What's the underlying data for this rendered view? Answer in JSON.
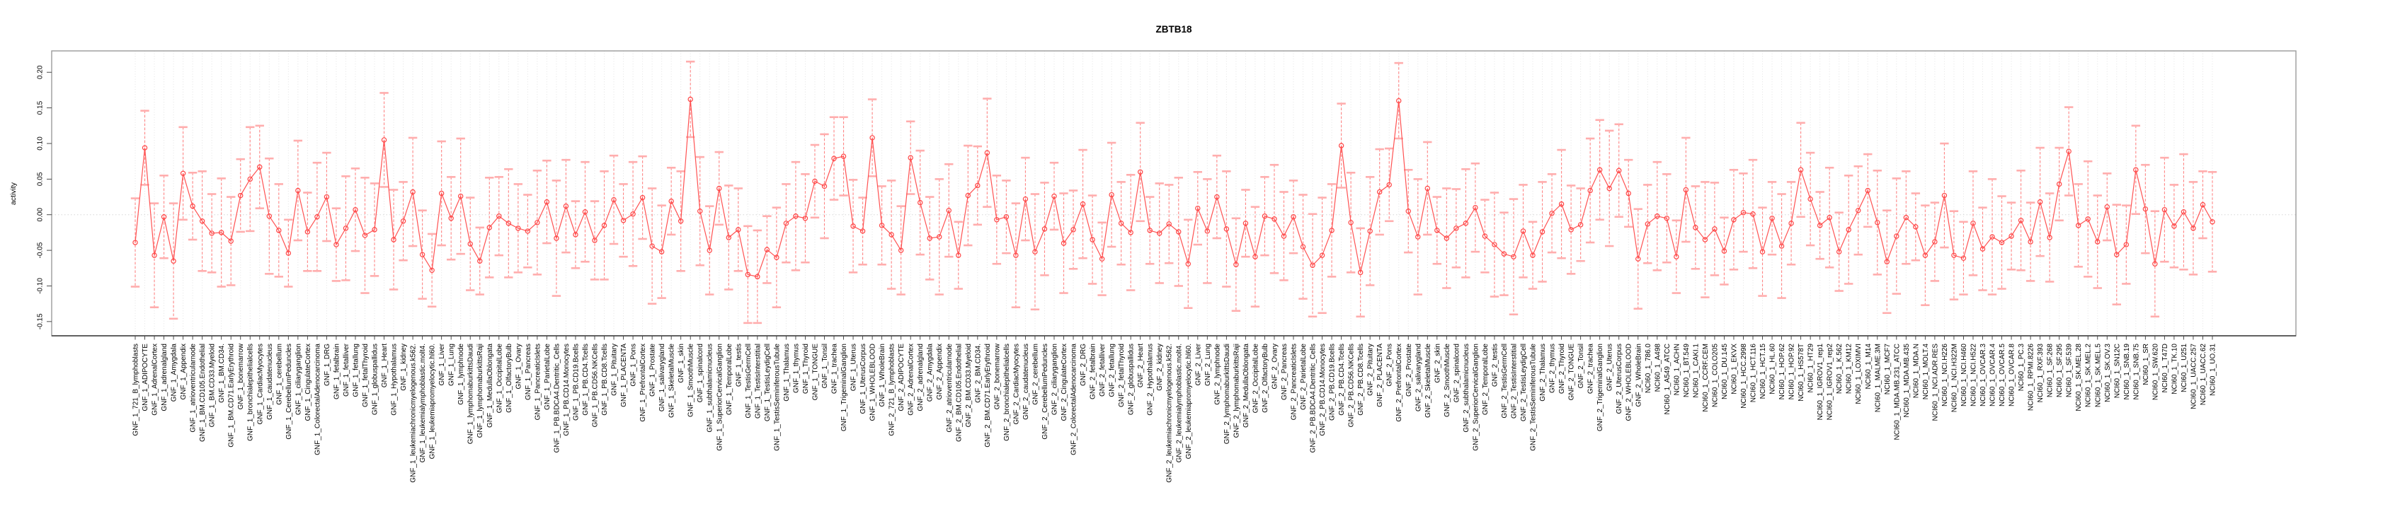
{
  "title": "ZBTB18",
  "colors": {
    "series_line": "#ff5252",
    "marker": "#ff4545",
    "error_line": "#ff8585",
    "error_cap": "#ffadad",
    "grid": "#e3e3e3",
    "zero_line": "#d6d6d6",
    "box": "#9b9b9b",
    "axis": "#3a3a3a",
    "text": "#000000",
    "background": "#ffffff"
  },
  "chart_data": {
    "type": "scatter",
    "title": "ZBTB18",
    "xlabel": "",
    "ylabel": "activity",
    "ylim": [
      -0.17,
      0.23
    ],
    "yticks": [
      0.2,
      0.15,
      0.1,
      0.05,
      0.0,
      -0.05,
      -0.1,
      -0.15
    ],
    "ytick_labels": [
      "0.20",
      "0.15",
      "0.10",
      "0.05",
      "0.00",
      "-0.05",
      "-0.10",
      "-0.15"
    ],
    "grid": {
      "vertical_dotted_per_category": true,
      "horizontal_zero_dotted": true
    },
    "legend": null,
    "marker": "open-circle",
    "connect_points": true,
    "error_bars": {
      "style": "dashed-line-with-caps"
    },
    "categories": [
      "GNF_1_721_B_lymphoblasts",
      "GNF_1_ADIPOCYTE",
      "GNF_1_AdrenalCortex",
      "GNF_1_adrenalgland",
      "GNF_1_Amygdala",
      "GNF_1_Appendix",
      "GNF_1_atrioventricularnode",
      "GNF_1_BM.CD105.Endothelial",
      "GNF_1_BM.CD33.Myeloid",
      "GNF_1_BM.CD34.",
      "GNF_1_BM.CD71.EarlyErythroid",
      "GNF_1_bonemarrow",
      "GNF_1_bronchialepithelialcells",
      "GNF_1_CardiacMyocytes",
      "GNF_1_caudatenucleus",
      "GNF_1_cerebellum",
      "GNF_1_CerebellumPeduncles",
      "GNF_1_ciliaryganglion",
      "GNF_1_CingulateCortex",
      "GNF_1_ColorectalAdenocarcinoma",
      "GNF_1_DRG",
      "GNF_1_fetalbrain",
      "GNF_1_fetalliver",
      "GNF_1_fetallung",
      "GNF_1_fetalThyroid",
      "GNF_1_globuspallidus",
      "GNF_1_Heart",
      "GNF_1_Hypothalamus",
      "GNF_1_kidney",
      "GNF_1_leukemiachronicmyelogenous.k562.",
      "GNF_1_leukemialymphoblastic.molt4.",
      "GNF_1_leukemiapromyelocytic.hl60.",
      "GNF_1_Liver",
      "GNF_1_Lung",
      "GNF_1_lymphnode",
      "GNF_1_lymphomaburkittsDaudi",
      "GNF_1_lymphomaburkittsRaji",
      "GNF_1_MedullaOblongata",
      "GNF_1_OccipitalLobe",
      "GNF_1_OlfactoryBulb",
      "GNF_1_Ovary",
      "GNF_1_Pancreas",
      "GNF_1_PancreaticIslets",
      "GNF_1_ParietalLobe",
      "GNF_1_PB.BDCA4.Dentritic_Cells",
      "GNF_1_PB.CD14.Monocytes",
      "GNF_1_PB.CD19.Bcells",
      "GNF_1_PB.CD4.Tcells",
      "GNF_1_PB.CD56.NKCells",
      "GNF_1_PB.CD8.Tcells",
      "GNF_1_Pituitary",
      "GNF_1_PLACENTA",
      "GNF_1_Pons",
      "GNF_1_PrefrontalCortex",
      "GNF_1_Prostate",
      "GNF_1_salivarygland",
      "GNF_1_SkeletalMuscle",
      "GNF_1_skin",
      "GNF_1_SmoothMuscle",
      "GNF_1_spinalcord",
      "GNF_1_subthalamicnucleus",
      "GNF_1_SuperiorCervicalGanglion",
      "GNF_1_TemporalLobe",
      "GNF_1_testis",
      "GNF_1_TestisGermCell",
      "GNF_1_TestisInterstitial",
      "GNF_1_TestisLeydigCell",
      "GNF_1_TestisSeminiferousTubule",
      "GNF_1_Thalamus",
      "GNF_1_thymus",
      "GNF_1_Thyroid",
      "GNF_1_TONGUE",
      "GNF_1_Tonsil",
      "GNF_1_trachea",
      "GNF_1_TrigeminalGanglion",
      "GNF_1_Uterus",
      "GNF_1_UterusCorpus",
      "GNF_1_WHOLEBLOOD",
      "GNF_1_WholeBrain",
      "GNF_2_721_B_lymphoblasts",
      "GNF_2_ADIPOCYTE",
      "GNF_2_AdrenalCortex",
      "GNF_2_adrenalgland",
      "GNF_2_Amygdala",
      "GNF_2_Appendix",
      "GNF_2_atrioventricularnode",
      "GNF_2_BM.CD105.Endothelial",
      "GNF_2_BM.CD33.Myeloid",
      "GNF_2_BM.CD34.",
      "GNF_2_BM.CD71.EarlyErythroid",
      "GNF_2_bonemarrow",
      "GNF_2_bronchialepithelialcells",
      "GNF_2_CardiacMyocytes",
      "GNF_2_caudatenucleus",
      "GNF_2_cerebellum",
      "GNF_2_CerebellumPeduncles",
      "GNF_2_ciliaryganglion",
      "GNF_2_CingulateCortex",
      "GNF_2_ColorectalAdenocarcinoma",
      "GNF_2_DRG",
      "GNF_2_fetalbrain",
      "GNF_2_fetalliver",
      "GNF_2_fetallung",
      "GNF_2_fetalThyroid",
      "GNF_2_globuspallidus",
      "GNF_2_Heart",
      "GNF_2_Hypothalamus",
      "GNF_2_kidney",
      "GNF_2_leukemiachronicmyelogenous.k562.",
      "GNF_2_leukemialymphoblastic.molt4.",
      "GNF_2_leukemiapromyelocytic.hl60.",
      "GNF_2_Liver",
      "GNF_2_Lung",
      "GNF_2_lymphnode",
      "GNF_2_lymphomaburkittsDaudi",
      "GNF_2_lymphomaburkittsRaji",
      "GNF_2_MedullaOblongata",
      "GNF_2_OccipitalLobe",
      "GNF_2_OlfactoryBulb",
      "GNF_2_Ovary",
      "GNF_2_Pancreas",
      "GNF_2_PancreaticIslets",
      "GNF_2_ParietalLobe",
      "GNF_2_PB.BDCA4.Dentritic_Cells",
      "GNF_2_PB.CD14.Monocytes",
      "GNF_2_PB.CD19.Bcells",
      "GNF_2_PB.CD4.Tcells",
      "GNF_2_PB.CD56.NKCells",
      "GNF_2_PB.CD8.Tcells",
      "GNF_2_Pituitary",
      "GNF_2_PLACENTA",
      "GNF_2_Pons",
      "GNF_2_PrefrontalCortex",
      "GNF_2_Prostate",
      "GNF_2_salivarygland",
      "GNF_2_SkeletalMuscle",
      "GNF_2_skin",
      "GNF_2_SmoothMuscle",
      "GNF_2_spinalcord",
      "GNF_2_subthalamicnucleus",
      "GNF_2_SuperiorCervicalGanglion",
      "GNF_2_TemporalLobe",
      "GNF_2_testis",
      "GNF_2_TestisGermCell",
      "GNF_2_TestisInterstitial",
      "GNF_2_TestisLeydigCell",
      "GNF_2_TestisSeminiferousTubule",
      "GNF_2_Thalamus",
      "GNF_2_thymus",
      "GNF_2_Thyroid",
      "GNF_2_TONGUE",
      "GNF_2_Tonsil",
      "GNF_2_trachea",
      "GNF_2_TrigeminalGanglion",
      "GNF_2_Uterus",
      "GNF_2_UterusCorpus",
      "GNF_2_WHOLEBLOOD",
      "GNF_2_WholeBrain",
      "NCI60_1_786.0",
      "NCI60_1_A498",
      "NCI60_1_A549_ATCC",
      "NCI60_1_ACHN",
      "NCI60_1_BT.549",
      "NCI60_1_CAKI.1",
      "NCI60_1_CCRF.CEM",
      "NCI60_1_COLO205",
      "NCI60_1_DU.145",
      "NCI60_1_EKVX",
      "NCI60_1_HCC.2998",
      "NCI60_1_HCT.116",
      "NCI60_1_HCT.15",
      "NCI60_1_HL.60",
      "NCI60_1_HOP.62",
      "NCI60_1_HOP.92",
      "NCI60_1_HS578T",
      "NCI60_1_HT29",
      "NCI60_1_IGROV1_rep1",
      "NCI60_1_IGROV1_rep2",
      "NCI60_1_K.562",
      "NCI60_1_KM12",
      "NCI60_1_LOXIMVI",
      "NCI60_1_M14",
      "NCI60_1_MALME.3M",
      "NCI60_1_MCF7",
      "NCI60_1_MDA.MB.231_ATCC",
      "NCI60_1_MDA.MB.435",
      "NCI60_1_MDA.N",
      "NCI60_1_MOLT.4",
      "NCI60_1_NCI.ADR.RES",
      "NCI60_1_NCI.H226",
      "NCI60_1_NCI.H322M",
      "NCI60_1_NCI.H460",
      "NCI60_1_NCI.H522",
      "NCI60_1_OVCAR.3",
      "NCI60_1_OVCAR.4",
      "NCI60_1_OVCAR.5",
      "NCI60_1_OVCAR.8",
      "NCI60_1_PC.3",
      "NCI60_1_RPMI.8226",
      "NCI60_1_RXF.393",
      "NCI60_1_SF.268",
      "NCI60_1_SF.295",
      "NCI60_1_SF.539",
      "NCI60_1_SK.MEL.28",
      "NCI60_1_SK.MEL.2",
      "NCI60_1_SK.MEL.5",
      "NCI60_1_SK.OV.3",
      "NCI60_1_SN12C",
      "NCI60_1_SNB.19",
      "NCI60_1_SNB.75",
      "NCI60_1_SR",
      "NCI60_1_SW.620",
      "NCI60_1_T47D",
      "NCI60_1_TK.10",
      "NCI60_1_U251",
      "NCI60_1_UACC.257",
      "NCI60_1_UACC.62",
      "NCI60_1_UO.31"
    ],
    "series": [
      {
        "name": "activity",
        "values": [
          -0.039,
          0.094,
          -0.057,
          -0.003,
          -0.065,
          0.058,
          0.012,
          -0.009,
          -0.026,
          -0.025,
          -0.037,
          0.027,
          0.05,
          0.067,
          -0.002,
          -0.022,
          -0.054,
          0.034,
          -0.024,
          -0.003,
          0.025,
          -0.042,
          -0.019,
          0.007,
          -0.029,
          -0.021,
          0.105,
          -0.035,
          -0.009,
          0.032,
          -0.056,
          -0.078,
          0.03,
          -0.005,
          0.026,
          -0.041,
          -0.065,
          -0.018,
          -0.002,
          -0.012,
          -0.019,
          -0.023,
          -0.011,
          0.018,
          -0.033,
          0.012,
          -0.028,
          0.004,
          -0.036,
          -0.015,
          0.021,
          -0.008,
          0.001,
          0.024,
          -0.044,
          -0.052,
          0.019,
          -0.009,
          0.162,
          0.005,
          -0.05,
          0.037,
          -0.032,
          -0.021,
          -0.084,
          -0.087,
          -0.049,
          -0.06,
          -0.012,
          -0.002,
          -0.005,
          0.047,
          0.04,
          0.079,
          0.082,
          -0.016,
          -0.023,
          0.108,
          -0.015,
          -0.028,
          -0.05,
          0.08,
          0.017,
          -0.033,
          -0.031,
          0.006,
          -0.057,
          0.027,
          0.041,
          0.087,
          -0.007,
          -0.003,
          -0.057,
          0.022,
          -0.052,
          -0.02,
          0.026,
          -0.04,
          -0.021,
          0.015,
          -0.035,
          -0.062,
          0.028,
          -0.012,
          -0.025,
          0.06,
          -0.022,
          -0.026,
          -0.013,
          -0.024,
          -0.069,
          0.009,
          -0.023,
          0.025,
          -0.02,
          -0.07,
          -0.012,
          -0.059,
          -0.002,
          -0.006,
          -0.03,
          -0.003,
          -0.045,
          -0.071,
          -0.057,
          -0.022,
          0.097,
          -0.011,
          -0.081,
          -0.023,
          0.032,
          0.042,
          0.16,
          0.005,
          -0.031,
          0.037,
          -0.022,
          -0.033,
          -0.019,
          -0.012,
          0.01,
          -0.03,
          -0.042,
          -0.055,
          -0.059,
          -0.023,
          -0.057,
          -0.024,
          0.002,
          0.015,
          -0.021,
          -0.014,
          0.034,
          0.063,
          0.037,
          0.062,
          0.03,
          -0.062,
          -0.013,
          -0.002,
          -0.005,
          -0.059,
          0.035,
          -0.018,
          -0.035,
          -0.02,
          -0.051,
          -0.007,
          0.003,
          0.001,
          -0.052,
          -0.005,
          -0.044,
          -0.012,
          0.063,
          0.022,
          -0.015,
          -0.004,
          -0.052,
          -0.021,
          0.006,
          0.034,
          -0.011,
          -0.066,
          -0.03,
          -0.004,
          -0.017,
          -0.057,
          -0.038,
          0.027,
          -0.057,
          -0.061,
          -0.012,
          -0.048,
          -0.031,
          -0.039,
          -0.03,
          -0.008,
          -0.038,
          0.018,
          -0.032,
          0.043,
          0.089,
          -0.015,
          -0.006,
          -0.038,
          0.011,
          -0.056,
          -0.042,
          0.063,
          0.008,
          -0.069,
          0.007,
          -0.016,
          0.004,
          -0.019,
          0.014,
          -0.01
        ],
        "err": [
          0.062,
          0.052,
          0.073,
          0.058,
          0.081,
          0.065,
          0.047,
          0.07,
          0.055,
          0.076,
          0.062,
          0.051,
          0.073,
          0.058,
          0.081,
          0.065,
          0.047,
          0.07,
          0.055,
          0.076,
          0.062,
          0.051,
          0.073,
          0.058,
          0.081,
          0.065,
          0.066,
          0.07,
          0.055,
          0.076,
          0.062,
          0.051,
          0.073,
          0.058,
          0.081,
          0.065,
          0.047,
          0.07,
          0.055,
          0.076,
          0.062,
          0.051,
          0.073,
          0.058,
          0.081,
          0.065,
          0.047,
          0.07,
          0.055,
          0.076,
          0.062,
          0.051,
          0.073,
          0.058,
          0.081,
          0.065,
          0.047,
          0.07,
          0.053,
          0.076,
          0.062,
          0.051,
          0.073,
          0.058,
          0.068,
          0.065,
          0.047,
          0.07,
          0.055,
          0.076,
          0.062,
          0.051,
          0.073,
          0.058,
          0.055,
          0.065,
          0.047,
          0.054,
          0.055,
          0.076,
          0.062,
          0.051,
          0.073,
          0.058,
          0.081,
          0.065,
          0.047,
          0.07,
          0.055,
          0.076,
          0.062,
          0.051,
          0.073,
          0.058,
          0.081,
          0.065,
          0.047,
          0.07,
          0.055,
          0.076,
          0.062,
          0.051,
          0.073,
          0.058,
          0.081,
          0.069,
          0.047,
          0.07,
          0.055,
          0.076,
          0.062,
          0.051,
          0.073,
          0.058,
          0.081,
          0.065,
          0.047,
          0.07,
          0.055,
          0.076,
          0.062,
          0.051,
          0.073,
          0.072,
          0.081,
          0.065,
          0.059,
          0.07,
          0.062,
          0.076,
          0.06,
          0.051,
          0.053,
          0.058,
          0.081,
          0.065,
          0.047,
          0.07,
          0.055,
          0.076,
          0.062,
          0.051,
          0.073,
          0.058,
          0.081,
          0.065,
          0.047,
          0.07,
          0.055,
          0.076,
          0.062,
          0.051,
          0.073,
          0.07,
          0.081,
          0.065,
          0.047,
          0.07,
          0.055,
          0.076,
          0.062,
          0.051,
          0.073,
          0.058,
          0.081,
          0.065,
          0.047,
          0.07,
          0.055,
          0.076,
          0.062,
          0.051,
          0.073,
          0.058,
          0.066,
          0.065,
          0.047,
          0.07,
          0.055,
          0.076,
          0.062,
          0.051,
          0.073,
          0.072,
          0.081,
          0.065,
          0.047,
          0.07,
          0.055,
          0.073,
          0.062,
          0.051,
          0.073,
          0.058,
          0.081,
          0.065,
          0.047,
          0.07,
          0.055,
          0.076,
          0.062,
          0.051,
          0.062,
          0.058,
          0.081,
          0.065,
          0.047,
          0.07,
          0.055,
          0.062,
          0.062,
          0.074,
          0.073,
          0.058,
          0.081,
          0.065,
          0.047,
          0.07
        ]
      }
    ]
  }
}
